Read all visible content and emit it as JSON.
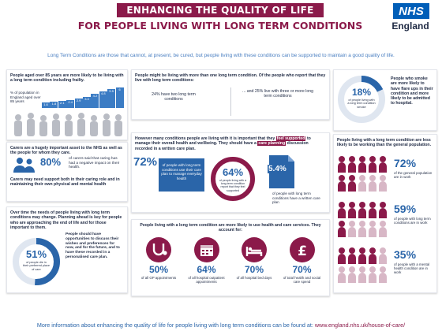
{
  "header": {
    "title_banner": "ENHANCING THE QUALITY OF LIFE",
    "title_sub": "FOR PEOPLE  LIVING WITH LONG TERM CONDITIONS",
    "logo_nhs": "NHS",
    "logo_region": "England"
  },
  "intro": "Long Term Conditions are those that cannot, at present, be cured, but people living with these conditions can be supported to maintain a good quality of life.",
  "panel_age": {
    "text": "People aged over 85 years are more likely to be living with a long term condition including frailty.",
    "bar_label": "% of population in England aged over 85 years",
    "bar_values": [
      "1.6",
      "1.8",
      "2.1",
      "2.4",
      "2.9",
      "3.3",
      "4.2",
      "4.8",
      "5.5",
      "6"
    ],
    "bar_fractions": [
      0.27,
      0.3,
      0.35,
      0.4,
      0.48,
      0.55,
      0.7,
      0.8,
      0.92,
      1.0
    ]
  },
  "panel_multi": {
    "text": "People might be living with more than one long term condition. Of the people who report that they live with long term conditions:",
    "stat_left": "24% have two long term conditions",
    "stat_right": "... and 25% live with three or more long term conditions"
  },
  "panel_smoke": {
    "pct": "18%",
    "pct_label": "of people living with a long term condition smoke",
    "side_text": "People who smoke are more likely to have flare ups in their condition and more likely to be admitted to hospital.",
    "ring_fraction": 0.18
  },
  "panel_carers": {
    "text1": "Carers are a hugely important asset to the NHS as well as the people for whom they care.",
    "pct": "80%",
    "pct_label": "of carers said that caring has had a negative impact on their health.",
    "text2": "Carers may need support both in their caring role and in maintaining their own physical and mental health"
  },
  "panel_support": {
    "intro_a": "However many conditions people are living with it is important that they",
    "highlight1": "feel supported",
    "intro_b": "to manage their overall health and wellbeing. They should have a",
    "highlight2": "care planning",
    "intro_c": "discussion recorded in a written care plan.",
    "stat1_pct": "72%",
    "stat1_label": "of people with long term conditions use their care plan to manage everyday health",
    "stat2_pct": "64%",
    "stat2_label": "of people living with a long term condition report that they feel supported",
    "stat3_pct": "5.4%",
    "stat3_label": "of people with long term conditions have a written care plan"
  },
  "panel_endlife": {
    "text": "Over time the needs of people living with long term conditions may change. Planning ahead is key for people who are approaching the end of life and for those important to them.",
    "pct": "51%",
    "pct_label": "of people die in their preferred place of care",
    "side_text": "People should have opportunities to discuss their wishes and preferences for now, and for the future, and to have these recorded in a personalised care plan.",
    "ring_fraction": 0.51
  },
  "panel_services": {
    "heading": "People living with a long term condition are more likely to use health and care services. They account for:",
    "items": [
      {
        "pct": "50%",
        "label": "of all GP appointments",
        "icon": "stethoscope-icon"
      },
      {
        "pct": "64%",
        "label": "of all hospital outpatient appointments",
        "icon": "calendar-icon"
      },
      {
        "pct": "70%",
        "label": "of all hospital bed days",
        "icon": "hospital-bed-icon"
      },
      {
        "pct": "70%",
        "label": "of total health and social care spend",
        "icon": "pound-icon"
      }
    ]
  },
  "panel_work": {
    "heading": "People living with a long term condition are less likely to be working than the general population.",
    "stats": [
      {
        "pct": "72%",
        "label": "of the general population are in work",
        "employed_count": 7
      },
      {
        "pct": "59%",
        "label": "of people with long term conditions are in work",
        "employed_count": 6
      },
      {
        "pct": "35%",
        "label": "of people with a mental health condition are in work",
        "employed_count": 4
      }
    ]
  },
  "footer": {
    "text": "More information about enhancing the quality of life for people living with long term conditions can be found at: ",
    "link": "www.england.nhs.uk/house-of-care/"
  },
  "colors": {
    "maroon": "#8b1a4a",
    "blue": "#2a65a9",
    "nhs_blue": "#005eb8"
  }
}
